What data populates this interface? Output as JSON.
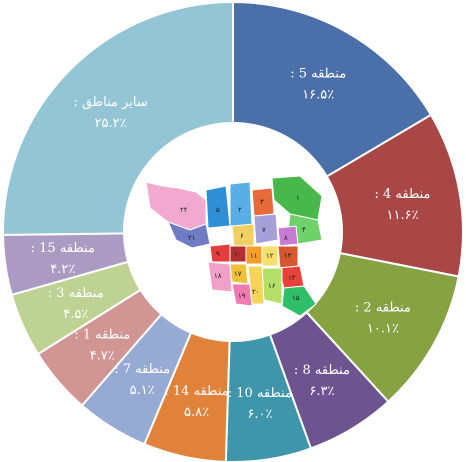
{
  "chart_data": {
    "type": "pie",
    "donut": true,
    "start_clockwise_from": "top",
    "slices": [
      {
        "label": "منطقه 5 :",
        "value_label": "۱۶.۵٪",
        "value": 16.5,
        "color": "#4a6fa9"
      },
      {
        "label": "منطقه 4 :",
        "value_label": "۱۱.۶٪",
        "value": 11.6,
        "color": "#a84745"
      },
      {
        "label": "منطقه 2 :",
        "value_label": "۱۰.۱٪",
        "value": 10.1,
        "color": "#86a243"
      },
      {
        "label": "منطقه 8 :",
        "value_label": "۶.۳٪",
        "value": 6.3,
        "color": "#6e548f"
      },
      {
        "label": "منطقه 10 :",
        "value_label": "۶.۰٪",
        "value": 6.0,
        "color": "#3f95a9"
      },
      {
        "label": "منطقه 14 :",
        "value_label": "۵.۸٪",
        "value": 5.8,
        "color": "#e0823a"
      },
      {
        "label": "منطقه 7 :",
        "value_label": "۵.۱٪",
        "value": 5.1,
        "color": "#97aad3"
      },
      {
        "label": "منطقه 1 :",
        "value_label": "۴.۷٪",
        "value": 4.7,
        "color": "#d19593"
      },
      {
        "label": "منطقه 3 :",
        "value_label": "۴.۵٪",
        "value": 4.5,
        "color": "#bdd293"
      },
      {
        "label": "منطقه 15 :",
        "value_label": "۴.۲٪",
        "value": 4.2,
        "color": "#ab9bc2"
      },
      {
        "label": "سایر مناطق :",
        "value_label": "۲۵.۲٪",
        "value": 25.2,
        "color": "#93c5d4"
      }
    ]
  },
  "map": {
    "district_numbers": [
      "۱",
      "۲",
      "۳",
      "۴",
      "۵",
      "۶",
      "۷",
      "۸",
      "۹",
      "۱۰",
      "۱۱",
      "۱۲",
      "۱۳",
      "۱۴",
      "۱۵",
      "۱۶",
      "۱۷",
      "۱۸",
      "۱۹",
      "۲۰",
      "۲۱",
      "۲۲"
    ]
  }
}
